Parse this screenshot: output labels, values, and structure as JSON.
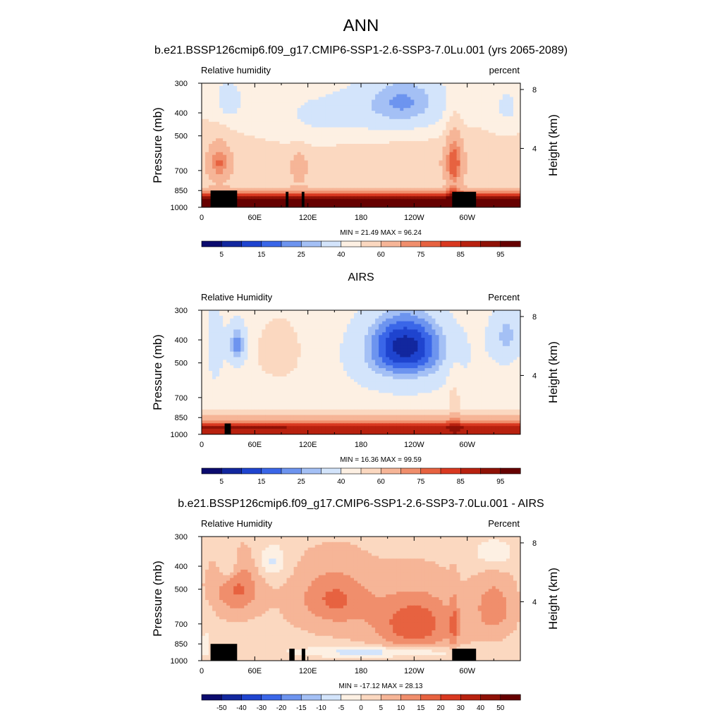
{
  "title": "ANN",
  "colors": {
    "rh": [
      "#0b0b6e",
      "#12279e",
      "#1f44cf",
      "#3a66e8",
      "#6d94ef",
      "#a4c0f5",
      "#d3e4fb",
      "#fdf0e3",
      "#fbd8c0",
      "#f6b597",
      "#f08e6c",
      "#e76240",
      "#d93820",
      "#b8210f",
      "#8f1106",
      "#660000"
    ],
    "diff": [
      "#0b0b6e",
      "#12279e",
      "#1f44cf",
      "#3a66e8",
      "#6d94ef",
      "#a4c0f5",
      "#d3e4fb",
      "#fdf0e3",
      "#fbd8c0",
      "#f6b597",
      "#f08e6c",
      "#e76240",
      "#d93820",
      "#b8210f",
      "#8f1106",
      "#660000"
    ]
  },
  "chart_data": [
    {
      "type": "heatmap",
      "title": "b.e21.BSSP126cmip6.f09_g17.CMIP6-SSP1-2.6-SSP3-7.0Lu.001 (yrs 2065-2089)",
      "left_label": "Relative humidity",
      "right_label": "percent",
      "ylabel": "Pressure (mb)",
      "ylabel_right": "Height (km)",
      "xticks": [
        "0",
        "60E",
        "120E",
        "180",
        "120W",
        "60W"
      ],
      "xlim": [
        0,
        360
      ],
      "yticks": [
        "300",
        "400",
        "500",
        "700",
        "850",
        "1000"
      ],
      "ylim": [
        1000,
        300
      ],
      "yticks_right": [
        "8",
        "4"
      ],
      "stats": "MIN =  21.49  MAX =  96.24",
      "min": 21.49,
      "max": 96.24,
      "colorbar_labels": [
        "5",
        "15",
        "25",
        "40",
        "60",
        "75",
        "85",
        "95"
      ],
      "kind": "rh",
      "terrain": [
        [
          10,
          40,
          850
        ],
        [
          95,
          98,
          860
        ],
        [
          113,
          116,
          860
        ],
        [
          283,
          310,
          860
        ]
      ]
    },
    {
      "type": "heatmap",
      "title": "AIRS",
      "left_label": "Relative Humidity",
      "right_label": "Percent",
      "ylabel": "Pressure (mb)",
      "ylabel_right": "Height (km)",
      "xticks": [
        "0",
        "60E",
        "120E",
        "180",
        "120W",
        "60W"
      ],
      "xlim": [
        0,
        360
      ],
      "yticks": [
        "300",
        "400",
        "500",
        "700",
        "850",
        "1000"
      ],
      "ylim": [
        1000,
        300
      ],
      "yticks_right": [
        "8",
        "4"
      ],
      "stats": "MIN =  16.36  MAX =  99.59",
      "min": 16.36,
      "max": 99.59,
      "colorbar_labels": [
        "5",
        "15",
        "25",
        "40",
        "60",
        "75",
        "85",
        "95"
      ],
      "kind": "airs",
      "terrain": [
        [
          26,
          33,
          900
        ]
      ]
    },
    {
      "type": "heatmap",
      "title": "b.e21.BSSP126cmip6.f09_g17.CMIP6-SSP1-2.6-SSP3-7.0Lu.001 - AIRS",
      "left_label": "Relative Humidity",
      "right_label": "Percent",
      "ylabel": "Pressure (mb)",
      "ylabel_right": "Height (km)",
      "xticks": [
        "0",
        "60E",
        "120E",
        "180",
        "120W",
        "60W"
      ],
      "xlim": [
        0,
        360
      ],
      "yticks": [
        "300",
        "400",
        "500",
        "700",
        "850",
        "1000"
      ],
      "ylim": [
        1000,
        300
      ],
      "yticks_right": [
        "8",
        "4"
      ],
      "stats": "MIN = -17.12  MAX =  28.13",
      "min": -17.12,
      "max": 28.13,
      "colorbar_labels": [
        "-50",
        "-40",
        "-30",
        "-20",
        "-15",
        "-10",
        "-5",
        "0",
        "5",
        "10",
        "15",
        "20",
        "30",
        "40",
        "50"
      ],
      "kind": "diff",
      "terrain": [
        [
          10,
          40,
          850
        ],
        [
          99,
          105,
          890
        ],
        [
          113,
          117,
          890
        ],
        [
          283,
          310,
          890
        ]
      ]
    }
  ]
}
